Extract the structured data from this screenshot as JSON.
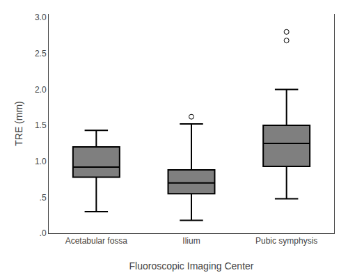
{
  "chart_data": {
    "type": "box",
    "categories": [
      "Acetabular fossa",
      "Ilium",
      "Pubic symphysis"
    ],
    "boxes": [
      {
        "q1": 0.78,
        "median": 0.92,
        "q3": 1.2,
        "whisker_low": 0.3,
        "whisker_high": 1.43,
        "outliers": []
      },
      {
        "q1": 0.55,
        "median": 0.7,
        "q3": 0.88,
        "whisker_low": 0.18,
        "whisker_high": 1.52,
        "outliers": [
          1.62
        ]
      },
      {
        "q1": 0.93,
        "median": 1.25,
        "q3": 1.5,
        "whisker_low": 0.48,
        "whisker_high": 2.0,
        "outliers": [
          2.68,
          2.8
        ]
      }
    ],
    "xlabel": "Fluoroscopic Imaging Center",
    "ylabel": "TRE (mm)",
    "ylim": [
      0.0,
      3.05
    ],
    "yticks": [
      {
        "value": 0.0,
        "label": ".0"
      },
      {
        "value": 0.5,
        "label": ".5"
      },
      {
        "value": 1.0,
        "label": "1.0"
      },
      {
        "value": 1.5,
        "label": "1.5"
      },
      {
        "value": 2.0,
        "label": "2.0"
      },
      {
        "value": 2.5,
        "label": "2.5"
      },
      {
        "value": 3.0,
        "label": "3.0"
      }
    ],
    "color": "#000000",
    "grid": false
  }
}
